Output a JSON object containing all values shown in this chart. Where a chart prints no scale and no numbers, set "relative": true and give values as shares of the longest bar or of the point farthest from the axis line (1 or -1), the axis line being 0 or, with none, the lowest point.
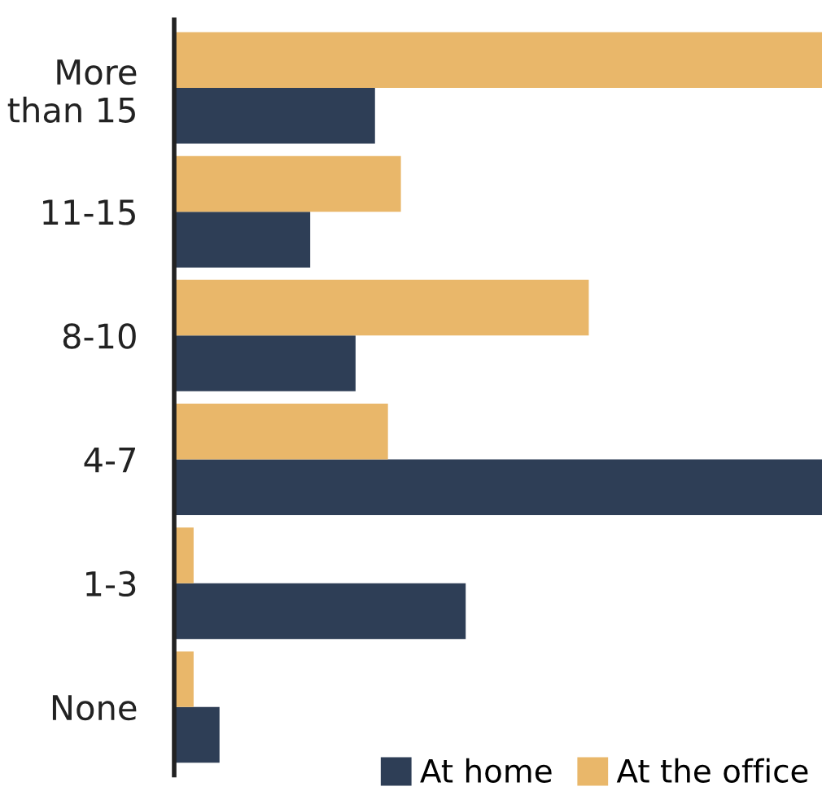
{
  "chart_data": {
    "type": "bar",
    "orientation": "horizontal",
    "relative": true,
    "categories": [
      "More\nthan 15",
      "11-15",
      "8-10",
      "4-7",
      "1-3",
      "None"
    ],
    "series": [
      {
        "name": "At home",
        "color": "#2e3e56",
        "values": [
          0.31,
          0.21,
          0.28,
          1.0,
          0.45,
          0.07
        ]
      },
      {
        "name": "At the office",
        "color": "#e9b76a",
        "values": [
          1.0,
          0.35,
          0.64,
          0.33,
          0.03,
          0.03
        ]
      }
    ],
    "legend": "bottom right",
    "grid": false
  }
}
